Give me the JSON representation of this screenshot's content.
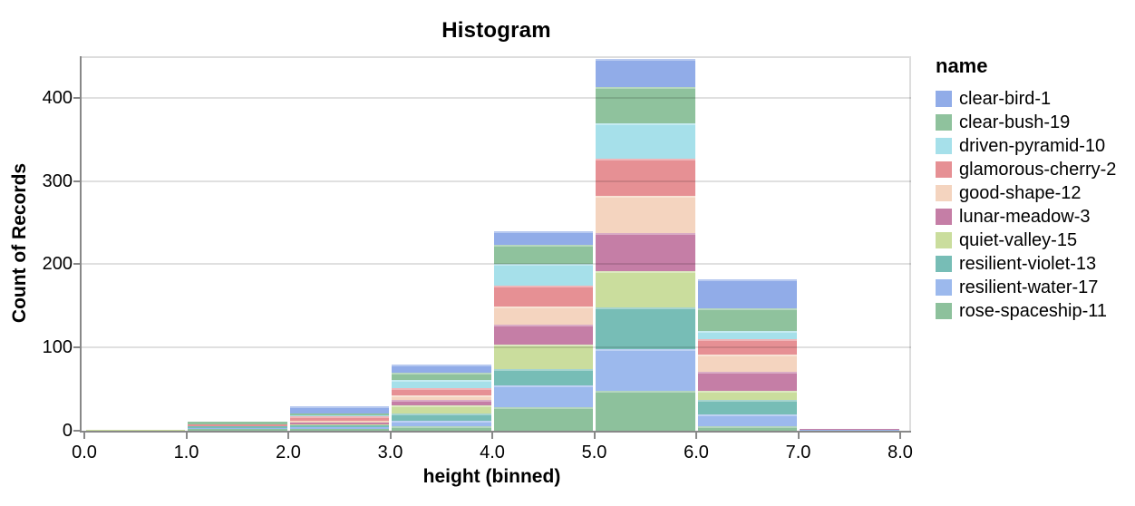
{
  "chart": {
    "title": "Histogram",
    "x_axis": {
      "title": "height (binned)",
      "tick_labels": [
        "0.0",
        "1.0",
        "2.0",
        "3.0",
        "4.0",
        "5.0",
        "6.0",
        "7.0",
        "8.0"
      ],
      "tick_values": [
        0,
        1,
        2,
        3,
        4,
        5,
        6,
        7,
        8
      ]
    },
    "y_axis": {
      "title": "Count of Records",
      "tick_labels": [
        "0",
        "100",
        "200",
        "300",
        "400"
      ],
      "tick_values": [
        0,
        100,
        200,
        300,
        400
      ]
    },
    "legend": {
      "title": "name"
    }
  },
  "chart_data": {
    "type": "bar",
    "stacked": true,
    "title": "Histogram",
    "xlabel": "height (binned)",
    "ylabel": "Count of Records",
    "xlim": [
      0,
      8
    ],
    "ylim": [
      0,
      450
    ],
    "grid": "horizontal",
    "legend_position": "right",
    "bin_edges": [
      0,
      1,
      2,
      3,
      4,
      5,
      6,
      7,
      8
    ],
    "bin_totals": [
      1,
      11,
      29,
      80,
      240,
      447,
      182,
      2
    ],
    "stack_order_note": "first series renders at top of stack",
    "series": [
      {
        "name": "clear-bird-1",
        "color": "#91ace8",
        "values": [
          0,
          0,
          8,
          10,
          17,
          34,
          35,
          0
        ]
      },
      {
        "name": "clear-bush-19",
        "color": "#8fc29d",
        "values": [
          0,
          3,
          2,
          9,
          23,
          44,
          27,
          0
        ]
      },
      {
        "name": "driven-pyramid-10",
        "color": "#a6e0ea",
        "values": [
          0,
          0,
          2,
          10,
          26,
          42,
          10,
          0
        ]
      },
      {
        "name": "glamorous-cherry-2",
        "color": "#e69094",
        "values": [
          0,
          3,
          5,
          9,
          25,
          45,
          18,
          0
        ]
      },
      {
        "name": "good-shape-12",
        "color": "#f4d4bf",
        "values": [
          0,
          0,
          2,
          5,
          22,
          45,
          21,
          0
        ]
      },
      {
        "name": "lunar-meadow-3",
        "color": "#c57ea6",
        "values": [
          0,
          0,
          2,
          6,
          23,
          45,
          23,
          1
        ]
      },
      {
        "name": "quiet-valley-15",
        "color": "#cadd9d",
        "values": [
          1,
          0,
          2,
          10,
          30,
          44,
          11,
          0
        ]
      },
      {
        "name": "resilient-violet-13",
        "color": "#77bdb6",
        "values": [
          0,
          2,
          2,
          9,
          20,
          50,
          17,
          0
        ]
      },
      {
        "name": "resilient-water-17",
        "color": "#9cb9ed",
        "values": [
          0,
          1,
          2,
          7,
          26,
          50,
          15,
          1
        ]
      },
      {
        "name": "rose-spaceship-11",
        "color": "#8dc19c",
        "values": [
          0,
          2,
          2,
          5,
          28,
          48,
          5,
          0
        ]
      }
    ]
  },
  "colors": {
    "axis_domain": "#888888",
    "tick": "#888888",
    "grid": "rgba(0,0,0,0.12)",
    "view_border": "#dddddd",
    "text": "#000000",
    "background": "#ffffff"
  }
}
